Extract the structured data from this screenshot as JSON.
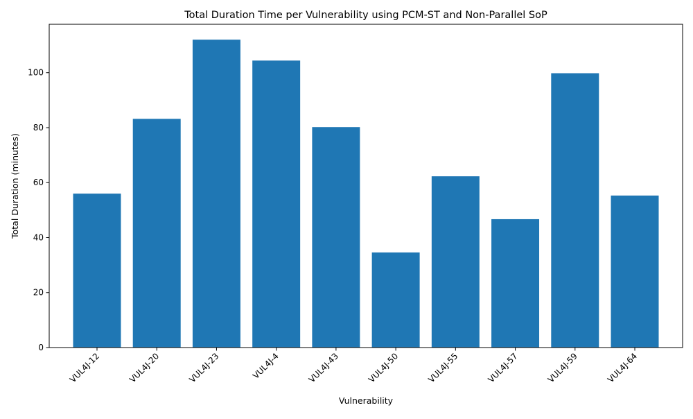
{
  "chart_data": {
    "type": "bar",
    "title": "Total Duration Time per Vulnerability using PCM-ST and Non-Parallel SoP",
    "xlabel": "Vulnerability",
    "ylabel": "Total Duration (minutes)",
    "categories": [
      "VUL4J-12",
      "VUL4J-20",
      "VUL4J-23",
      "VUL4J-4",
      "VUL4J-43",
      "VUL4J-50",
      "VUL4J-55",
      "VUL4J-57",
      "VUL4J-59",
      "VUL4J-64"
    ],
    "values": [
      56.0,
      83.2,
      112.0,
      104.4,
      80.2,
      34.6,
      62.3,
      46.7,
      99.8,
      55.3
    ],
    "ylim": [
      0,
      117.6
    ],
    "yticks": [
      0,
      20,
      40,
      60,
      80,
      100
    ],
    "grid": false,
    "legend": "none",
    "bar_color": "#1f77b4"
  }
}
